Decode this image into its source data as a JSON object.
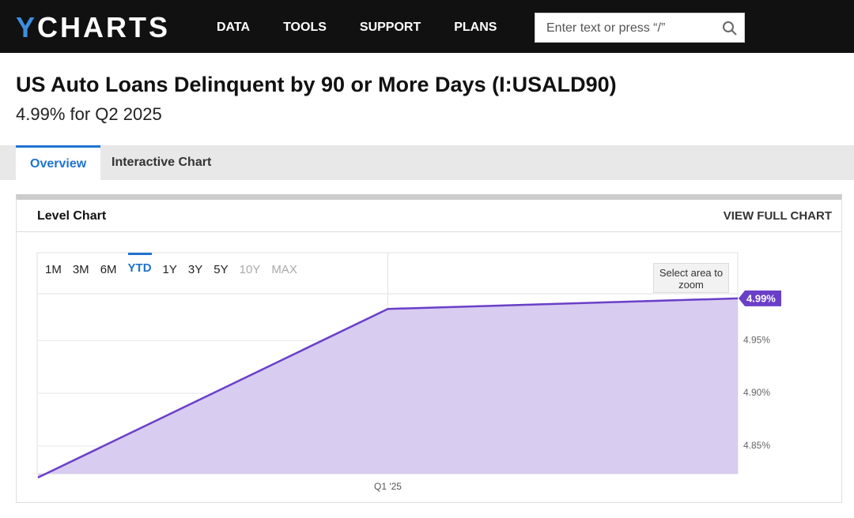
{
  "header": {
    "logo": "YCHARTS",
    "nav": [
      "DATA",
      "TOOLS",
      "SUPPORT",
      "PLANS"
    ],
    "search_placeholder": "Enter text or press “/”"
  },
  "page": {
    "title": "US Auto Loans Delinquent by 90 or More Days (I:USALD90)",
    "subtitle": "4.99% for Q2 2025"
  },
  "tabs": [
    "Overview",
    "Interactive Chart"
  ],
  "card": {
    "title": "Level Chart",
    "link": "VIEW FULL CHART",
    "ranges": [
      "1M",
      "3M",
      "6M",
      "YTD",
      "1Y",
      "3Y",
      "5Y",
      "10Y",
      "MAX"
    ],
    "zoom_hint": "Select area to zoom"
  },
  "chart_data": {
    "type": "area",
    "categories": [
      null,
      "Q1 '25",
      null
    ],
    "series": [
      {
        "name": "US Auto Loans Delinquent by 90 or More Days",
        "color": "#6a3fc8",
        "values": [
          4.82,
          4.98,
          4.99
        ],
        "value_labels": [
          null,
          null,
          "4.99%"
        ]
      }
    ],
    "ylim": [
      4.8236,
      4.9944
    ],
    "yticks": [
      {
        "value": 4.85,
        "label": "4.85%"
      },
      {
        "value": 4.9,
        "label": "4.90%"
      },
      {
        "value": 4.95,
        "label": "4.95%"
      }
    ],
    "grid": true
  }
}
